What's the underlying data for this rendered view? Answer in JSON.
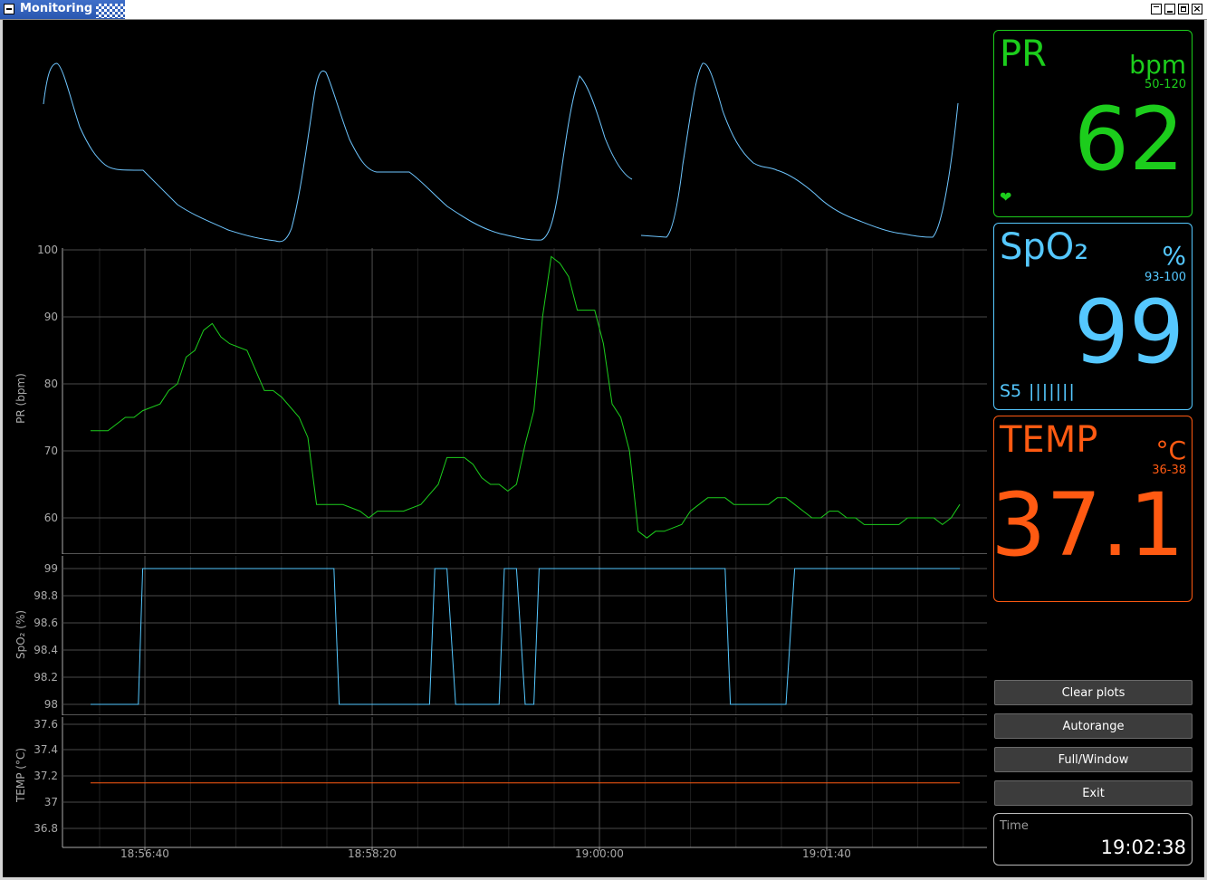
{
  "window": {
    "title": "Monitoring"
  },
  "colors": {
    "pr": "#1ccd1c",
    "spo2": "#55c8ff",
    "temp": "#ff5a12",
    "pleth": "#6ec6ff",
    "grid": "#2a2a2a",
    "axis": "#aaaaaa"
  },
  "panels": {
    "pr": {
      "label": "PR",
      "unit": "bpm",
      "range": "50-120",
      "value": "62",
      "icon": "heart-icon"
    },
    "spo2": {
      "label": "SpO₂",
      "unit": "%",
      "range": "93-100",
      "value": "99",
      "signal_label": "S5",
      "signal_bars": "|||||||"
    },
    "temp": {
      "label": "TEMP",
      "unit": "°C",
      "range": "36-38",
      "value": "37.1"
    }
  },
  "buttons": {
    "clear": "Clear plots",
    "autorange": "Autorange",
    "fullwindow": "Full/Window",
    "exit": "Exit"
  },
  "time": {
    "label": "Time",
    "value": "19:02:38"
  },
  "chart_data": [
    {
      "type": "line",
      "title": "",
      "ylabel": "PR (bpm)",
      "yticks": [
        "100",
        "90",
        "80",
        "70",
        "60"
      ],
      "xticks": [
        "18:56:40",
        "18:58:20",
        "19:00:00",
        "19:01:40"
      ],
      "ylim": [
        55,
        101.5
      ],
      "xlim": [
        0,
        100
      ],
      "x": [
        0,
        2,
        4,
        5,
        6,
        8,
        9,
        10,
        11,
        12,
        13,
        14,
        15,
        16,
        18,
        19,
        20,
        21,
        22,
        24,
        25,
        26,
        27,
        28,
        29,
        31,
        32,
        33,
        34,
        35,
        36,
        38,
        40,
        41,
        42,
        43,
        44,
        45,
        46,
        47,
        48,
        49,
        50,
        51,
        52,
        53,
        54,
        55,
        56,
        58,
        59,
        60,
        61,
        62,
        63,
        64,
        65,
        66,
        68,
        69,
        70,
        71,
        72,
        73,
        74,
        76,
        77,
        78,
        79,
        80,
        81,
        82,
        83,
        84,
        85,
        86,
        87,
        88,
        89,
        90,
        91,
        92,
        93,
        94,
        95,
        96,
        97,
        98,
        99,
        100
      ],
      "series": [
        {
          "values": [
            73,
            73,
            75,
            75,
            76,
            77,
            79,
            80,
            84,
            85,
            88,
            89,
            87,
            86,
            85,
            82,
            79,
            79,
            78,
            75,
            72,
            62,
            62,
            62,
            62,
            61,
            60,
            61,
            61,
            61,
            61,
            62,
            65,
            69,
            69,
            69,
            68,
            66,
            65,
            65,
            64,
            65,
            71,
            76,
            90,
            99,
            98,
            96,
            91,
            91,
            86,
            77,
            75,
            70,
            58,
            57,
            58,
            58,
            59,
            61,
            62,
            63,
            63,
            63,
            62,
            62,
            62,
            62,
            63,
            63,
            62,
            61,
            60,
            60,
            61,
            61,
            60,
            60,
            59,
            59,
            59,
            59,
            59,
            60,
            60,
            60,
            60,
            59,
            60,
            62
          ]
        }
      ]
    },
    {
      "type": "line",
      "title": "",
      "ylabel": "SpO₂ (%)",
      "yticks": [
        "99",
        "98.8",
        "98.6",
        "98.4",
        "98.2",
        "98"
      ],
      "ylim": [
        97.97,
        99.05
      ],
      "xlim": [
        0,
        100
      ],
      "x": [
        0,
        5.5,
        6,
        28,
        28.6,
        39,
        39.6,
        41,
        42,
        47,
        47.6,
        49,
        50,
        51,
        51.6,
        53,
        54,
        73,
        73.6,
        80,
        81,
        100
      ],
      "series": [
        {
          "values": [
            98,
            98,
            99,
            99,
            98,
            98,
            99,
            99,
            98,
            98,
            99,
            99,
            98,
            98,
            99,
            99,
            99,
            99,
            98,
            98,
            99,
            99
          ]
        }
      ]
    },
    {
      "type": "line",
      "title": "",
      "ylabel": "TEMP (°C)",
      "yticks": [
        "37.6",
        "37.4",
        "37.2",
        "37",
        "36.8"
      ],
      "ylim": [
        36.72,
        37.65
      ],
      "xlim": [
        0,
        100
      ],
      "x": [
        0,
        100
      ],
      "series": [
        {
          "values": [
            37.15,
            37.15
          ]
        }
      ]
    }
  ]
}
